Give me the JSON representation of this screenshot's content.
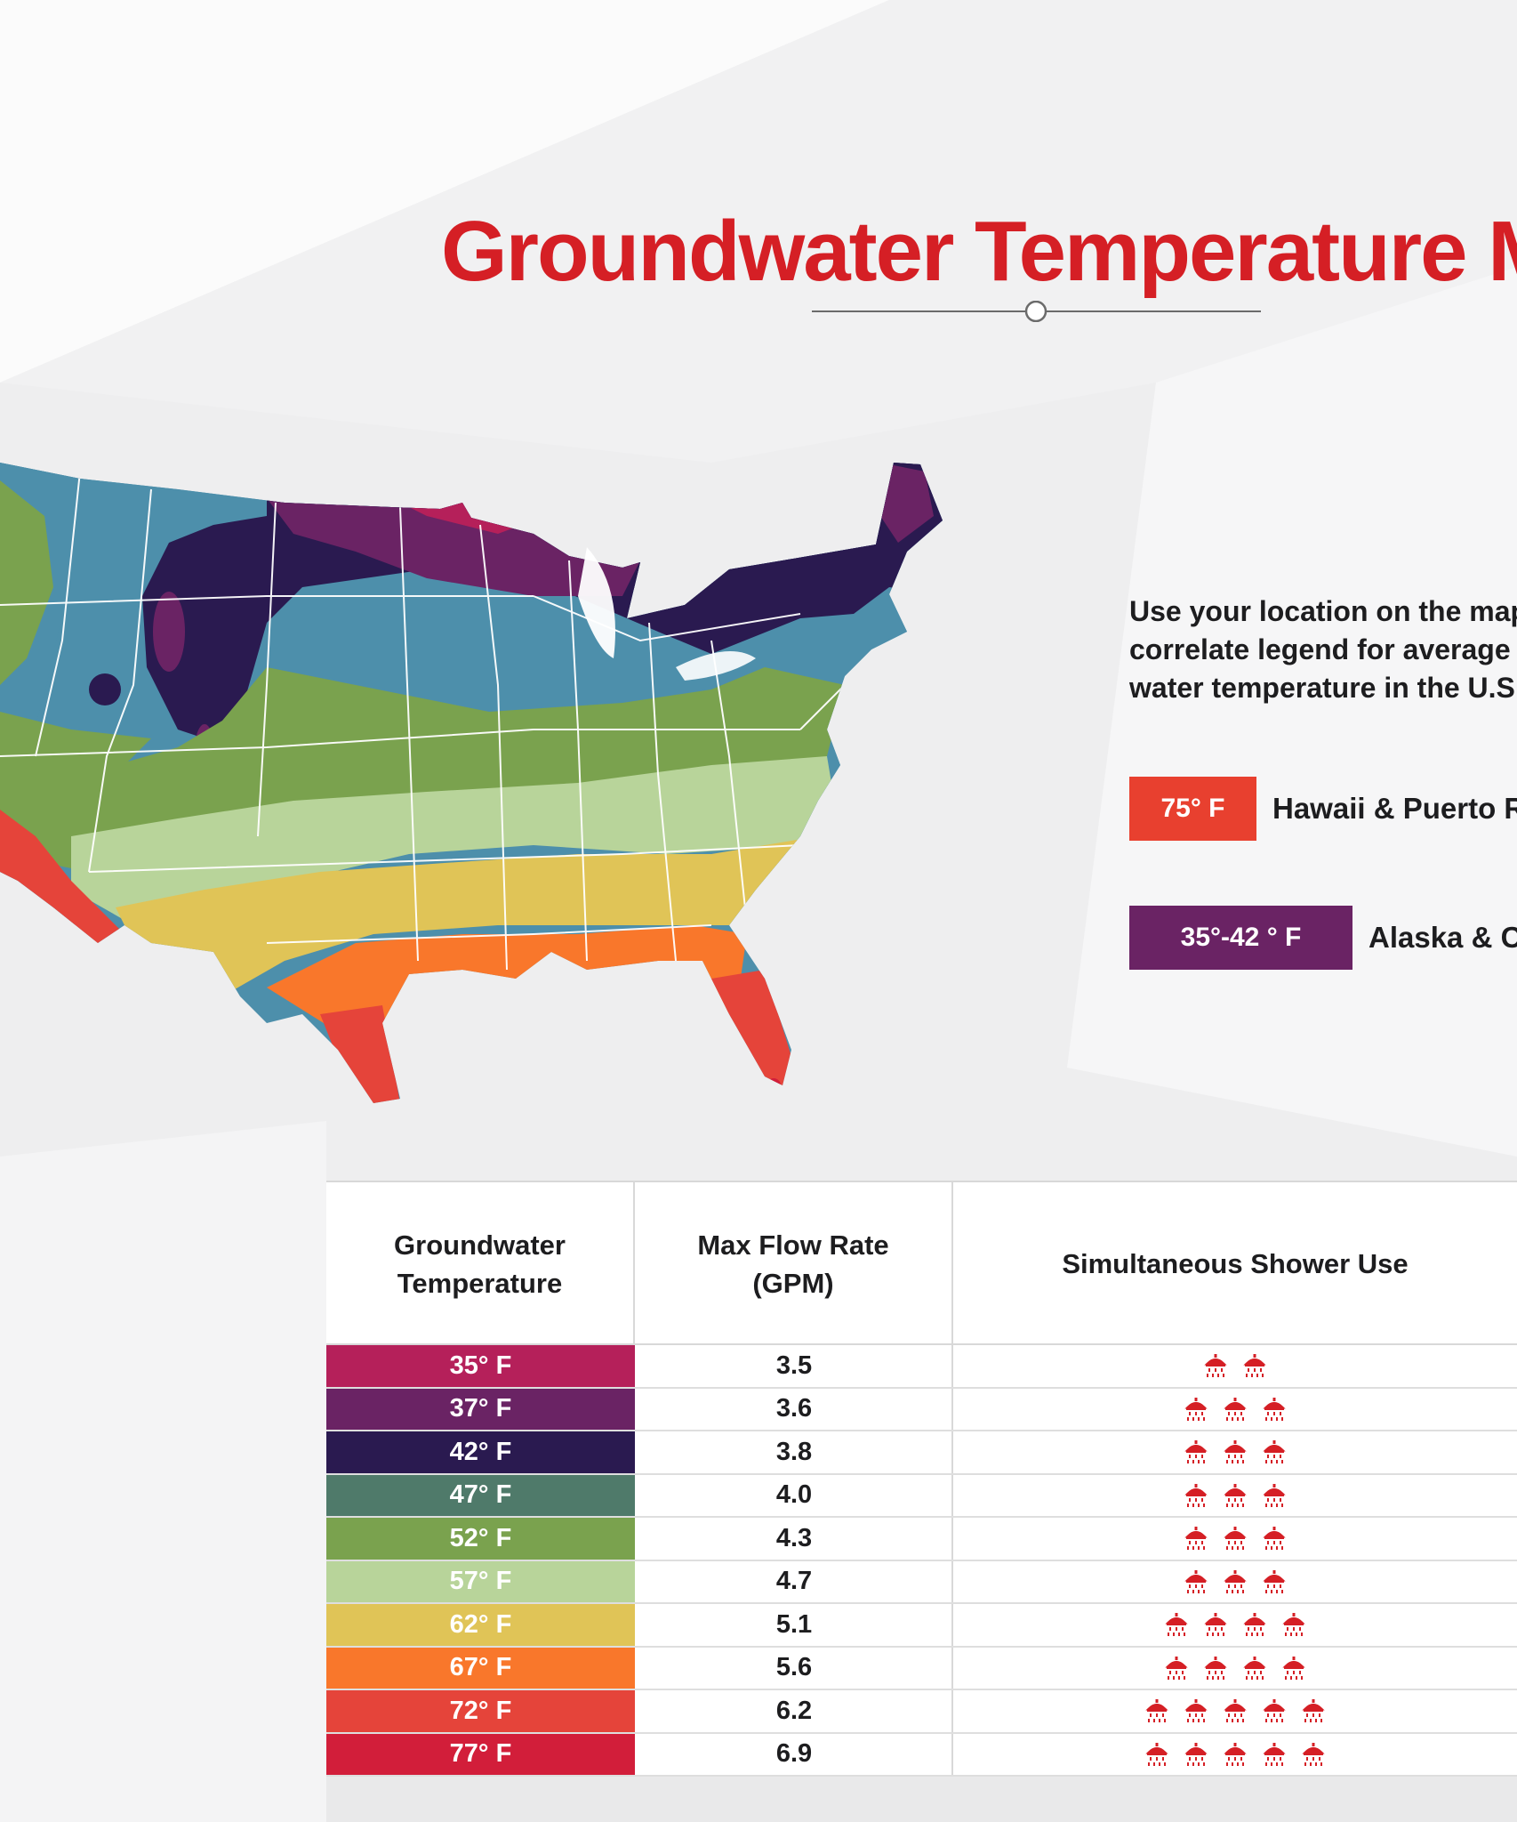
{
  "title": "Groundwater Temperature M",
  "legend": {
    "description_lines": [
      "Use your location on the map",
      "correlate legend for average",
      "water temperature  in the U.S"
    ],
    "items": [
      {
        "label": "75° F",
        "text": "Hawaii & Puerto R",
        "color": "#e8402f"
      },
      {
        "label": "35°-42 ° F",
        "text": "Alaska & Ca",
        "color": "#6a2364"
      }
    ]
  },
  "table": {
    "headers": {
      "temperature": [
        "Groundwater",
        "Temperature"
      ],
      "flow_rate": [
        "Max Flow Rate",
        "(GPM)"
      ],
      "shower": "Simultaneous Shower Use"
    },
    "rows": [
      {
        "temp": "35° F",
        "rate": "3.5",
        "showers": 2,
        "color": "#b5205a"
      },
      {
        "temp": "37° F",
        "rate": "3.6",
        "showers": 3,
        "color": "#6a2364"
      },
      {
        "temp": "42° F",
        "rate": "3.8",
        "showers": 3,
        "color": "#2a1a50"
      },
      {
        "temp": "47° F",
        "rate": "4.0",
        "showers": 3,
        "color": "#4f7a6a"
      },
      {
        "temp": "52° F",
        "rate": "4.3",
        "showers": 3,
        "color": "#7aa24e"
      },
      {
        "temp": "57° F",
        "rate": "4.7",
        "showers": 3,
        "color": "#b8d49a"
      },
      {
        "temp": "62° F",
        "rate": "5.1",
        "showers": 4,
        "color": "#e0c457"
      },
      {
        "temp": "67° F",
        "rate": "5.6",
        "showers": 4,
        "color": "#f9772b"
      },
      {
        "temp": "72° F",
        "rate": "6.2",
        "showers": 5,
        "color": "#e5443a"
      },
      {
        "temp": "77° F",
        "rate": "6.9",
        "showers": 5,
        "color": "#d21e3a"
      }
    ]
  },
  "icons": {
    "shower": "shower-head-icon",
    "shower_color": "#d51f25"
  },
  "colors": {
    "title": "#d51f25",
    "text": "#1d1d1f",
    "background": "#eeeeef"
  }
}
